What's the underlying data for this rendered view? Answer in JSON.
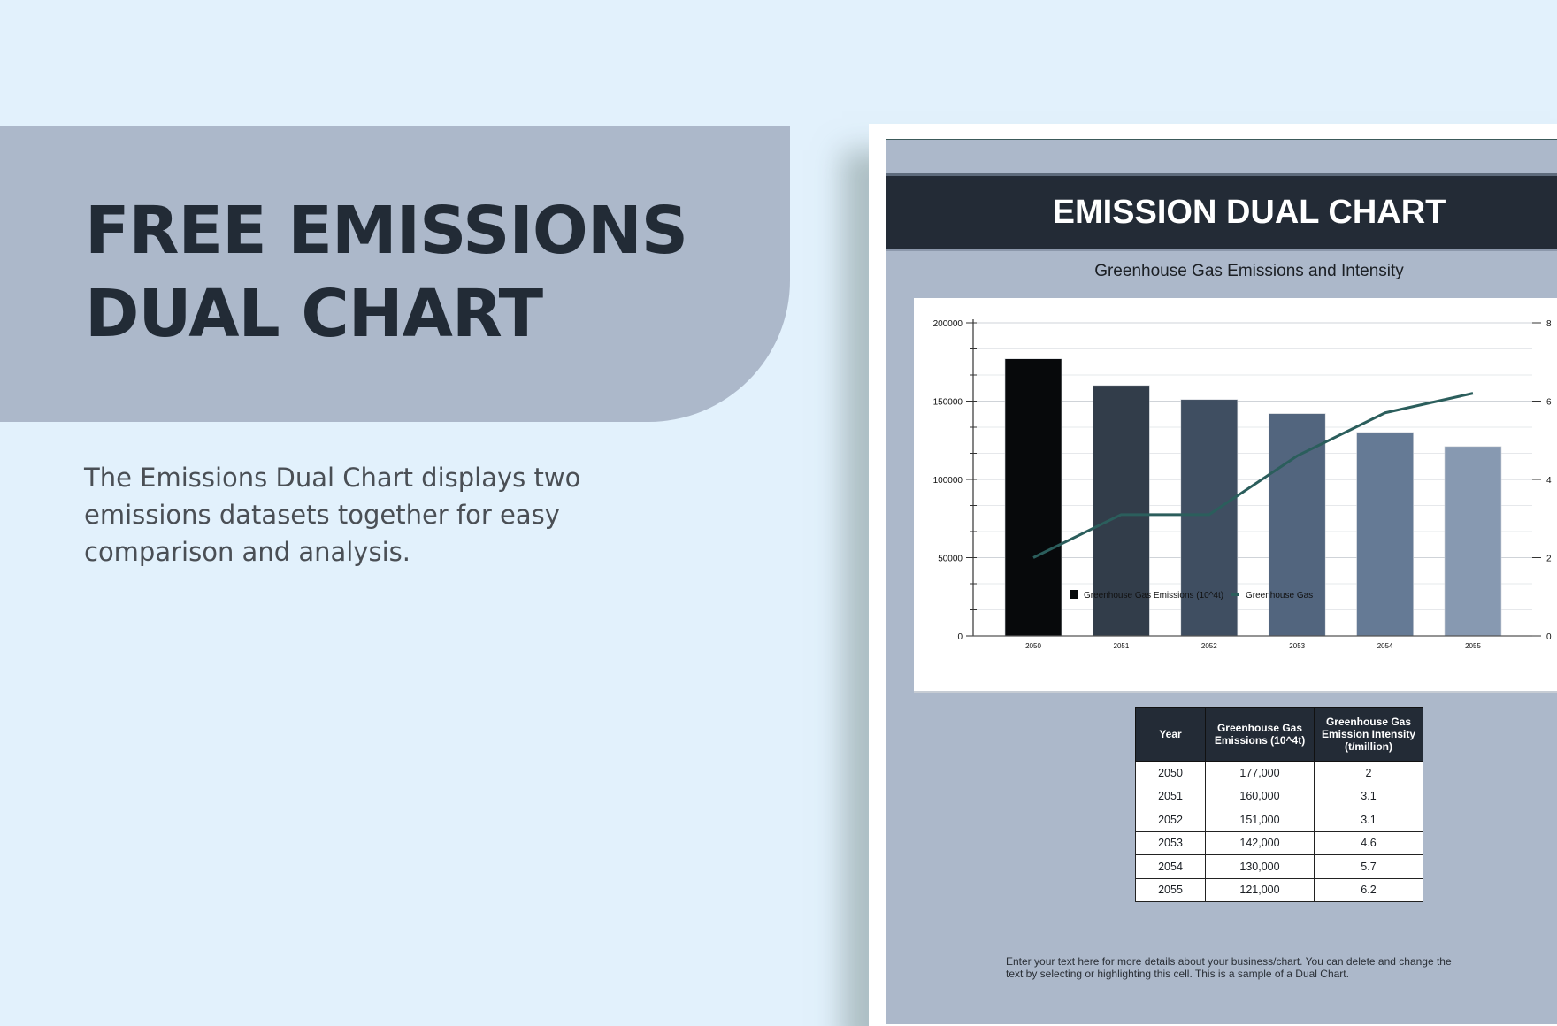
{
  "hero": {
    "title_line1": "FREE EMISSIONS",
    "title_line2": "DUAL CHART",
    "description": "The Emissions Dual Chart displays two emissions datasets together for easy comparison and analysis."
  },
  "document": {
    "title": "EMISSION DUAL CHART",
    "chart_title": "Greenhouse Gas Emissions and Intensity",
    "footer_note": "Enter your text here for more details about your business/chart. You can delete and change the text by selecting or highlighting this cell. This is a sample of a Dual Chart."
  },
  "colors": {
    "background": "#e2f1fc",
    "banner": "#acb8ca",
    "heading": "#222b36",
    "header_bar": "#232b36",
    "line": "#2b5e5c",
    "bars": [
      "#07090b",
      "#323d4a",
      "#3f4e61",
      "#52657e",
      "#657a95",
      "#8799b1"
    ]
  },
  "chart_data": {
    "type": "bar",
    "title": "Greenhouse Gas Emissions and Intensity",
    "categories": [
      "2050",
      "2051",
      "2052",
      "2053",
      "2054",
      "2055"
    ],
    "series": [
      {
        "name": "Greenhouse Gas Emissions (10^4t)",
        "type": "bar",
        "axis": "left",
        "values": [
          177000,
          160000,
          151000,
          142000,
          130000,
          121000
        ]
      },
      {
        "name": "Greenhouse Gas",
        "type": "line",
        "axis": "right",
        "values": [
          2,
          3.1,
          3.1,
          4.6,
          5.7,
          6.2
        ]
      }
    ],
    "y_left": {
      "ticks": [
        "0",
        "50000",
        "100000",
        "150000",
        "200000"
      ],
      "ylim": [
        0,
        200000
      ]
    },
    "y_right": {
      "ticks": [
        "0",
        "2",
        "4",
        "6",
        "8"
      ],
      "ylim": [
        0,
        8
      ]
    },
    "grid": true,
    "legend_position": "bottom"
  },
  "table": {
    "headers": [
      "Year",
      "Greenhouse Gas Emissions (10^4t)",
      "Greenhouse Gas Emission Intensity (t/million)"
    ],
    "rows": [
      [
        "2050",
        "177,000",
        "2"
      ],
      [
        "2051",
        "160,000",
        "3.1"
      ],
      [
        "2052",
        "151,000",
        "3.1"
      ],
      [
        "2053",
        "142,000",
        "4.6"
      ],
      [
        "2054",
        "130,000",
        "5.7"
      ],
      [
        "2055",
        "121,000",
        "6.2"
      ]
    ]
  }
}
